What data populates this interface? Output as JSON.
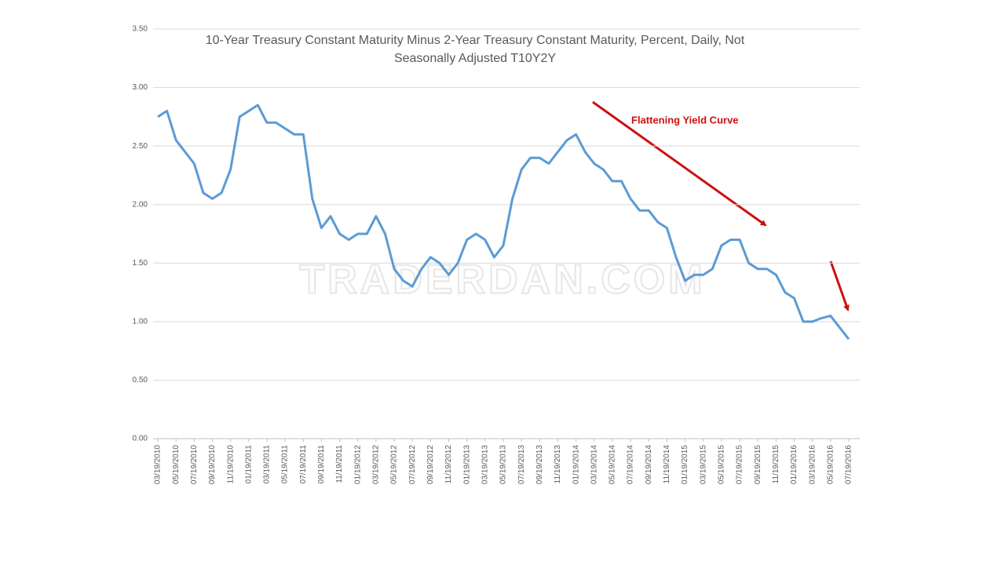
{
  "chart_data": {
    "type": "line",
    "title": [
      "10-Year Treasury Constant Maturity Minus 2-Year Treasury Constant Maturity, Percent, Daily, Not",
      "Seasonally Adjusted T10Y2Y"
    ],
    "watermark": "TRADERDAN.COM",
    "annotations": [
      "Flattening Yield Curve"
    ],
    "annotation_color": "#cc1111",
    "categories": [
      "03/19/2010",
      null,
      "05/19/2010",
      null,
      "07/19/2010",
      null,
      "09/19/2010",
      null,
      "11/19/2010",
      null,
      "01/19/2011",
      null,
      "03/19/2011",
      null,
      "05/19/2011",
      null,
      "07/19/2011",
      null,
      "09/19/2011",
      null,
      "11/19/2011",
      null,
      "01/19/2012",
      null,
      "03/19/2012",
      null,
      "05/19/2012",
      null,
      "07/19/2012",
      null,
      "09/19/2012",
      null,
      "11/19/2012",
      null,
      "01/19/2013",
      null,
      "03/19/2013",
      null,
      "05/19/2013",
      null,
      "07/19/2013",
      null,
      "09/19/2013",
      null,
      "11/19/2013",
      null,
      "01/19/2014",
      null,
      "03/19/2014",
      null,
      "05/19/2014",
      null,
      "07/19/2014",
      null,
      "09/19/2014",
      null,
      "11/19/2014",
      null,
      "01/19/2015",
      null,
      "03/19/2015",
      null,
      "05/19/2015",
      null,
      "07/19/2015",
      null,
      "09/19/2015",
      null,
      "11/19/2015",
      null,
      "01/19/2016",
      null,
      "03/19/2016",
      null,
      "05/19/2016",
      null,
      "07/19/2016"
    ],
    "series": [
      {
        "name": "T10Y2Y",
        "color": "#5b9bd5",
        "values": [
          2.75,
          2.8,
          2.55,
          2.45,
          2.35,
          2.1,
          2.05,
          2.1,
          2.3,
          2.75,
          2.8,
          2.85,
          2.7,
          2.7,
          2.65,
          2.6,
          2.6,
          2.05,
          1.8,
          1.9,
          1.75,
          1.7,
          1.75,
          1.75,
          1.9,
          1.75,
          1.45,
          1.35,
          1.3,
          1.45,
          1.55,
          1.5,
          1.4,
          1.5,
          1.7,
          1.75,
          1.7,
          1.55,
          1.65,
          2.05,
          2.3,
          2.4,
          2.4,
          2.35,
          2.45,
          2.55,
          2.6,
          2.45,
          2.35,
          2.3,
          2.2,
          2.2,
          2.05,
          1.95,
          1.95,
          1.85,
          1.8,
          1.55,
          1.35,
          1.4,
          1.4,
          1.45,
          1.65,
          1.7,
          1.7,
          1.5,
          1.45,
          1.45,
          1.4,
          1.25,
          1.2,
          1.0,
          1.0,
          1.03,
          1.05,
          0.95,
          0.85
        ]
      }
    ],
    "ylim": [
      0,
      3.5
    ],
    "yticks": [
      {
        "value": 0,
        "label": "0.00"
      },
      {
        "value": 0.5,
        "label": "0.50"
      },
      {
        "value": 1,
        "label": "1.00"
      },
      {
        "value": 1.5,
        "label": "1.50"
      },
      {
        "value": 2,
        "label": "2.00"
      },
      {
        "value": 2.5,
        "label": "2.50"
      },
      {
        "value": 3,
        "label": "3.00"
      },
      {
        "value": 3.5,
        "label": "3.50"
      }
    ],
    "grid": true
  }
}
